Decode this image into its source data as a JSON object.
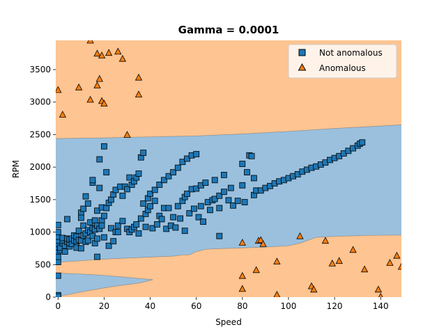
{
  "chart_data": {
    "type": "scatter",
    "title": "Gamma = 0.0001",
    "xlabel": "Speed",
    "ylabel": "RPM",
    "xlim": [
      -1,
      149
    ],
    "ylim": [
      0,
      3950
    ],
    "xticks": [
      0,
      20,
      40,
      60,
      80,
      100,
      120,
      140
    ],
    "yticks": [
      0,
      500,
      1000,
      1500,
      2000,
      2500,
      3000,
      3500
    ],
    "grid": false,
    "legend_position": "top-right",
    "decision_regions": {
      "normal_color": "#9ac0de",
      "anomalous_color": "#fec491",
      "upper_boundary": [
        [
          -1,
          2440
        ],
        [
          20,
          2450
        ],
        [
          40,
          2465
        ],
        [
          60,
          2480
        ],
        [
          80,
          2510
        ],
        [
          100,
          2550
        ],
        [
          120,
          2595
        ],
        [
          149,
          2650
        ]
      ],
      "lower_boundary": [
        [
          -1,
          535
        ],
        [
          10,
          560
        ],
        [
          20,
          585
        ],
        [
          30,
          600
        ],
        [
          40,
          615
        ],
        [
          50,
          630
        ],
        [
          54,
          650
        ],
        [
          57,
          650
        ],
        [
          60,
          700
        ],
        [
          64,
          735
        ],
        [
          70,
          745
        ],
        [
          90,
          770
        ],
        [
          100,
          790
        ],
        [
          105,
          830
        ],
        [
          112,
          920
        ],
        [
          120,
          935
        ],
        [
          135,
          950
        ],
        [
          149,
          955
        ]
      ],
      "tongue_boundary_top": [
        [
          -1,
          370
        ],
        [
          10,
          355
        ],
        [
          20,
          335
        ],
        [
          28,
          310
        ],
        [
          34,
          290
        ],
        [
          41,
          270
        ]
      ],
      "tongue_boundary_bottom": [
        [
          41,
          265
        ],
        [
          35,
          215
        ],
        [
          25,
          170
        ],
        [
          18,
          130
        ],
        [
          10,
          80
        ],
        [
          4,
          35
        ],
        [
          -1,
          10
        ]
      ]
    },
    "series": [
      {
        "name": "Not anomalous",
        "marker": "square",
        "color": "#1f77b4",
        "points": [
          [
            0,
            0
          ],
          [
            0,
            30
          ],
          [
            0,
            10
          ],
          [
            0,
            330
          ],
          [
            0,
            540
          ],
          [
            0,
            620
          ],
          [
            0,
            700
          ],
          [
            0,
            770
          ],
          [
            0,
            820
          ],
          [
            0,
            870
          ],
          [
            0,
            930
          ],
          [
            0,
            1000
          ],
          [
            0,
            1110
          ],
          [
            1,
            720
          ],
          [
            1,
            760
          ],
          [
            2,
            830
          ],
          [
            2,
            870
          ],
          [
            2,
            910
          ],
          [
            3,
            700
          ],
          [
            3,
            790
          ],
          [
            4,
            850
          ],
          [
            4,
            900
          ],
          [
            4,
            1200
          ],
          [
            5,
            780
          ],
          [
            5,
            830
          ],
          [
            5,
            890
          ],
          [
            6,
            820
          ],
          [
            6,
            900
          ],
          [
            7,
            870
          ],
          [
            7,
            950
          ],
          [
            8,
            760
          ],
          [
            8,
            860
          ],
          [
            8,
            930
          ],
          [
            9,
            880
          ],
          [
            9,
            1020
          ],
          [
            10,
            750
          ],
          [
            10,
            870
          ],
          [
            10,
            1300
          ],
          [
            10,
            1220
          ],
          [
            11,
            950
          ],
          [
            11,
            1100
          ],
          [
            11,
            1360
          ],
          [
            12,
            850
          ],
          [
            12,
            980
          ],
          [
            12,
            1550
          ],
          [
            13,
            870
          ],
          [
            13,
            1030
          ],
          [
            13,
            1440
          ],
          [
            14,
            1000
          ],
          [
            14,
            1150
          ],
          [
            15,
            940
          ],
          [
            15,
            1060
          ],
          [
            15,
            1760
          ],
          [
            15,
            1800
          ],
          [
            16,
            830
          ],
          [
            16,
            1040
          ],
          [
            16,
            1180
          ],
          [
            17,
            620
          ],
          [
            17,
            900
          ],
          [
            17,
            1100
          ],
          [
            17,
            1330
          ],
          [
            18,
            2120
          ],
          [
            18,
            1680
          ],
          [
            18,
            1050
          ],
          [
            19,
            1180
          ],
          [
            19,
            1380
          ],
          [
            19,
            1100
          ],
          [
            20,
            2320
          ],
          [
            20,
            1250
          ],
          [
            20,
            920
          ],
          [
            21,
            1920
          ],
          [
            21,
            1370
          ],
          [
            22,
            790
          ],
          [
            22,
            1450
          ],
          [
            23,
            1500
          ],
          [
            23,
            1060
          ],
          [
            24,
            1580
          ],
          [
            24,
            860
          ],
          [
            25,
            1650
          ],
          [
            25,
            1000
          ],
          [
            26,
            1000
          ],
          [
            26,
            1100
          ],
          [
            27,
            1700
          ],
          [
            28,
            1560
          ],
          [
            28,
            1170
          ],
          [
            29,
            1700
          ],
          [
            30,
            1660
          ],
          [
            30,
            1050
          ],
          [
            31,
            1840
          ],
          [
            31,
            1000
          ],
          [
            32,
            1730
          ],
          [
            32,
            1040
          ],
          [
            33,
            1780
          ],
          [
            33,
            1080
          ],
          [
            34,
            1840
          ],
          [
            34,
            1120
          ],
          [
            35,
            1900
          ],
          [
            35,
            980
          ],
          [
            36,
            2150
          ],
          [
            36,
            1210
          ],
          [
            37,
            2220
          ],
          [
            37,
            1440
          ],
          [
            38,
            1280
          ],
          [
            38,
            1080
          ],
          [
            39,
            1520
          ],
          [
            39,
            1340
          ],
          [
            40,
            1590
          ],
          [
            40,
            1400
          ],
          [
            41,
            1060
          ],
          [
            42,
            1650
          ],
          [
            42,
            1480
          ],
          [
            43,
            1120
          ],
          [
            44,
            1730
          ],
          [
            44,
            1250
          ],
          [
            45,
            1200
          ],
          [
            46,
            1800
          ],
          [
            46,
            1370
          ],
          [
            47,
            1050
          ],
          [
            48,
            1860
          ],
          [
            48,
            1370
          ],
          [
            49,
            1100
          ],
          [
            50,
            1920
          ],
          [
            50,
            1230
          ],
          [
            51,
            1070
          ],
          [
            52,
            1990
          ],
          [
            52,
            1400
          ],
          [
            53,
            1210
          ],
          [
            54,
            2080
          ],
          [
            54,
            1480
          ],
          [
            55,
            1540
          ],
          [
            55,
            1020
          ],
          [
            56,
            2130
          ],
          [
            56,
            1590
          ],
          [
            57,
            1290
          ],
          [
            58,
            2180
          ],
          [
            58,
            1660
          ],
          [
            59,
            1360
          ],
          [
            60,
            2200
          ],
          [
            60,
            1670
          ],
          [
            61,
            1230
          ],
          [
            62,
            1720
          ],
          [
            62,
            1400
          ],
          [
            63,
            1160
          ],
          [
            64,
            1760
          ],
          [
            65,
            1460
          ],
          [
            66,
            1340
          ],
          [
            67,
            1490
          ],
          [
            68,
            1800
          ],
          [
            68,
            1510
          ],
          [
            70,
            940
          ],
          [
            70,
            1560
          ],
          [
            70,
            1370
          ],
          [
            72,
            1880
          ],
          [
            72,
            1620
          ],
          [
            74,
            1490
          ],
          [
            75,
            1680
          ],
          [
            76,
            1410
          ],
          [
            78,
            1480
          ],
          [
            80,
            2050
          ],
          [
            80,
            1720
          ],
          [
            81,
            1460
          ],
          [
            82,
            1920
          ],
          [
            83,
            2180
          ],
          [
            84,
            2170
          ],
          [
            85,
            1830
          ],
          [
            85,
            1570
          ],
          [
            86,
            1640
          ],
          [
            88,
            1640
          ],
          [
            90,
            1680
          ],
          [
            92,
            1710
          ],
          [
            94,
            1750
          ],
          [
            96,
            1780
          ],
          [
            98,
            1800
          ],
          [
            100,
            1830
          ],
          [
            102,
            1860
          ],
          [
            104,
            1890
          ],
          [
            106,
            1930
          ],
          [
            108,
            1960
          ],
          [
            110,
            1990
          ],
          [
            112,
            2010
          ],
          [
            114,
            2040
          ],
          [
            116,
            2070
          ],
          [
            118,
            2110
          ],
          [
            120,
            2140
          ],
          [
            122,
            2170
          ],
          [
            124,
            2210
          ],
          [
            126,
            2250
          ],
          [
            128,
            2290
          ],
          [
            130,
            2330
          ],
          [
            131,
            2360
          ],
          [
            132,
            2380
          ]
        ]
      },
      {
        "name": "Anomalous",
        "marker": "triangle",
        "color": "#ff7f0e",
        "points": [
          [
            14,
            3950
          ],
          [
            17,
            3750
          ],
          [
            19,
            3720
          ],
          [
            22,
            3760
          ],
          [
            26,
            3780
          ],
          [
            28,
            3670
          ],
          [
            0,
            3190
          ],
          [
            9,
            3230
          ],
          [
            17,
            3260
          ],
          [
            18,
            3360
          ],
          [
            35,
            3380
          ],
          [
            14,
            3040
          ],
          [
            19,
            3020
          ],
          [
            20,
            2980
          ],
          [
            35,
            3120
          ],
          [
            2,
            2810
          ],
          [
            30,
            2500
          ],
          [
            80,
            840
          ],
          [
            87,
            870
          ],
          [
            88,
            880
          ],
          [
            89,
            820
          ],
          [
            105,
            940
          ],
          [
            116,
            870
          ],
          [
            128,
            730
          ],
          [
            80,
            330
          ],
          [
            86,
            420
          ],
          [
            95,
            550
          ],
          [
            119,
            520
          ],
          [
            122,
            560
          ],
          [
            133,
            430
          ],
          [
            144,
            530
          ],
          [
            147,
            640
          ],
          [
            149,
            470
          ],
          [
            80,
            130
          ],
          [
            110,
            170
          ],
          [
            111,
            120
          ],
          [
            95,
            40
          ],
          [
            139,
            120
          ],
          [
            140,
            10
          ]
        ]
      }
    ]
  }
}
